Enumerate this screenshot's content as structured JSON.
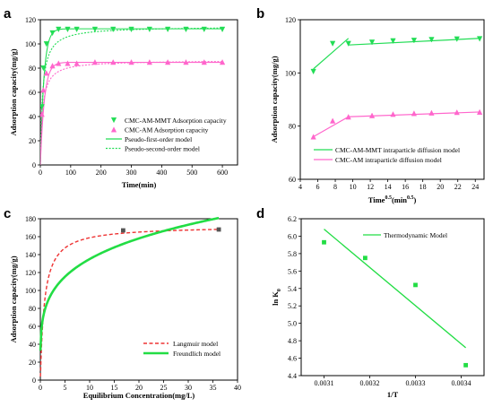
{
  "chart_data": [
    {
      "panel": "a",
      "type": "line",
      "xlabel": "Time(min)",
      "ylabel": "Adsorption capacity(mg/g)",
      "xlim": [
        0,
        650
      ],
      "ylim": [
        0,
        120
      ],
      "xticks": [
        0,
        100,
        200,
        300,
        400,
        500,
        600
      ],
      "yticks": [
        0,
        20,
        40,
        60,
        80,
        100,
        120
      ],
      "legend_position": "bottom-right",
      "series": [
        {
          "name": "CMC-AM-MMT Adsorption capacity",
          "kind": "scatter",
          "marker": "triangle-down",
          "color": "#22dd55",
          "x": [
            5,
            10,
            20,
            40,
            60,
            90,
            120,
            180,
            240,
            300,
            360,
            420,
            480,
            540,
            600
          ],
          "y": [
            48,
            80,
            100,
            109,
            112,
            112,
            112,
            112,
            112,
            112,
            112,
            112,
            112,
            112,
            112
          ]
        },
        {
          "name": "CMC-AM Adsorption capacity",
          "kind": "scatter",
          "marker": "triangle-up",
          "color": "#ff66cc",
          "x": [
            5,
            10,
            20,
            40,
            60,
            90,
            120,
            180,
            240,
            300,
            360,
            420,
            480,
            540,
            600
          ],
          "y": [
            42,
            62,
            76,
            82,
            84,
            84,
            84,
            85,
            85,
            85,
            85,
            85,
            85,
            85,
            85
          ]
        },
        {
          "name": "Pseudo-first-order model",
          "kind": "line",
          "dash": "solid",
          "color": "#22dd55",
          "model": "pfo",
          "fits": [
            {
              "qe": 112.5,
              "k": 0.085
            },
            {
              "qe": 84.8,
              "k": 0.075
            }
          ]
        },
        {
          "name": "Pseudo-second-order model",
          "kind": "line",
          "dash": "dotted",
          "color": "#22dd55",
          "model": "pso",
          "fits": [
            {
              "qe": 114.5,
              "k": 0.0012
            },
            {
              "qe": 86.5,
              "k": 0.0016
            }
          ]
        }
      ]
    },
    {
      "panel": "b",
      "type": "line",
      "xlabel": "Time",
      "xlabel_sup1": "0.5",
      "xlabel_mid": "(min",
      "xlabel_sup2": "0.5",
      "xlabel_end": ")",
      "ylabel": "Adsorption capacity(mg/g)",
      "xlim": [
        4,
        25
      ],
      "ylim": [
        60,
        120
      ],
      "xticks": [
        4,
        6,
        8,
        10,
        12,
        14,
        16,
        18,
        20,
        22,
        24
      ],
      "yticks": [
        60,
        80,
        100,
        120
      ],
      "legend_position": "bottom-right",
      "series": [
        {
          "name": "CMC-AM-MMT intraparticle diffusion model",
          "color": "#22dd55",
          "marker": "triangle-down",
          "x": [
            5.5,
            7.7,
            9.5,
            12.2,
            14.6,
            17.0,
            19.0,
            21.9,
            24.5
          ],
          "y": [
            100.5,
            111,
            111,
            111.5,
            112,
            112.2,
            112.5,
            112.7,
            112.8
          ],
          "fit_segments": [
            [
              [
                5.5,
                101.5
              ],
              [
                9.5,
                113
              ]
            ],
            [
              [
                9.5,
                110.5
              ],
              [
                24.5,
                113
              ]
            ]
          ]
        },
        {
          "name": "CMC-AM intraparticle diffusion model",
          "color": "#ff66cc",
          "marker": "triangle-up",
          "x": [
            5.5,
            7.7,
            9.5,
            12.2,
            14.6,
            17.0,
            19.0,
            21.9,
            24.5
          ],
          "y": [
            76,
            82,
            83.5,
            84,
            84.5,
            84.8,
            85,
            85.2,
            85.3
          ],
          "fit_segments": [
            [
              [
                5.5,
                76
              ],
              [
                9.5,
                83.5
              ]
            ],
            [
              [
                9.5,
                83.5
              ],
              [
                24.5,
                85.3
              ]
            ]
          ]
        }
      ]
    },
    {
      "panel": "c",
      "type": "line",
      "xlabel": "Equilibrium Concentration(mg/L)",
      "ylabel": "Adsorption capacity(mg/g)",
      "xlim": [
        0,
        40
      ],
      "ylim": [
        0,
        180
      ],
      "xticks": [
        0,
        5,
        10,
        15,
        20,
        25,
        30,
        35,
        40
      ],
      "yticks": [
        0,
        20,
        40,
        60,
        80,
        100,
        120,
        140,
        160,
        180
      ],
      "legend_position": "bottom-right",
      "points": {
        "color": "#555555",
        "x": [
          16.8,
          36.2
        ],
        "y": [
          167,
          168
        ]
      },
      "series": [
        {
          "name": "Langmuir model",
          "dash": "dashed",
          "color": "#ee3333",
          "model": "langmuir",
          "qm": 172,
          "KL": 1.2
        },
        {
          "name": "Freundlich model",
          "dash": "solid",
          "color": "#22dd44",
          "model": "freundlich",
          "KF": 80,
          "n": 4.4
        }
      ]
    },
    {
      "panel": "d",
      "type": "scatter",
      "xlabel": "1/T",
      "ylabel": "ln K",
      "ylabel_sub": "0",
      "xlim": [
        0.00305,
        0.00345
      ],
      "ylim": [
        4.4,
        6.2
      ],
      "xticks": [
        0.0031,
        0.0032,
        0.0033,
        0.0034
      ],
      "xtick_labels": [
        "0.0031",
        "0.0032",
        "0.0033",
        "0.0034"
      ],
      "yticks": [
        4.4,
        4.6,
        4.8,
        5.0,
        5.2,
        5.4,
        5.6,
        5.8,
        6.0,
        6.2
      ],
      "ytick_labels": [
        "4.4",
        "4.6",
        "4.8",
        "5.0",
        "5.2",
        "5.4",
        "5.6",
        "5.8",
        "6.0",
        "6.2"
      ],
      "legend_position": "top-right",
      "series": [
        {
          "name": "Thermodynamic Model",
          "color": "#22dd44",
          "x": [
            0.0031,
            0.00319,
            0.0033,
            0.00341
          ],
          "y": [
            5.93,
            5.75,
            5.44,
            4.52
          ],
          "fit": [
            [
              0.0031,
              6.08
            ],
            [
              0.00341,
              4.72
            ]
          ]
        }
      ]
    }
  ]
}
